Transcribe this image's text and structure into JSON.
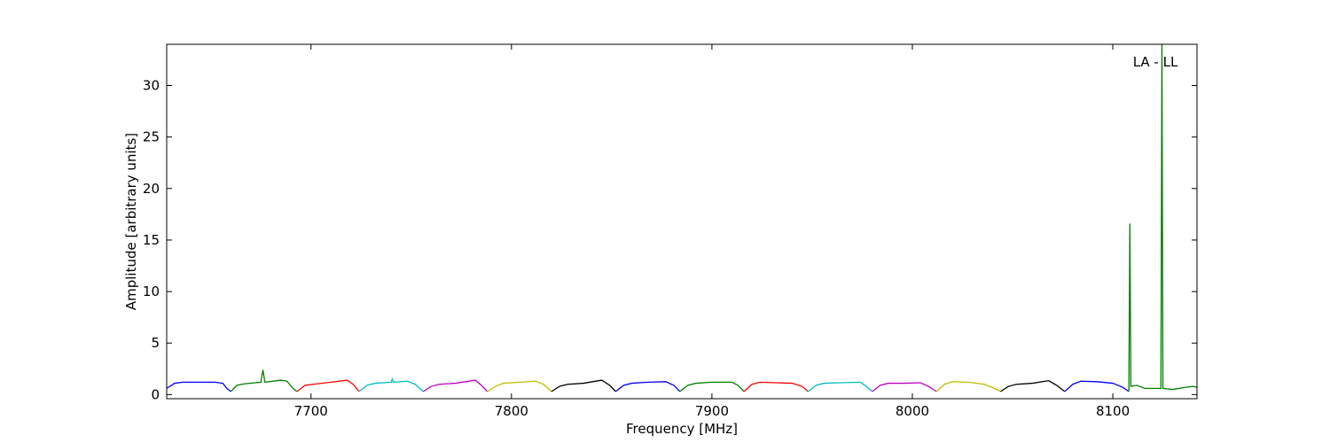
{
  "chart_data": {
    "type": "line",
    "annotation": "LA - LL",
    "xlabel": "Frequency [MHz]",
    "ylabel": "Amplitude [arbitrary units]",
    "xlim": [
      7628,
      8142
    ],
    "ylim": [
      -0.4,
      34
    ],
    "xticks": [
      7700,
      7800,
      7900,
      8000,
      8100
    ],
    "yticks": [
      0,
      5,
      10,
      15,
      20,
      25,
      30
    ],
    "series": [
      {
        "color": "#0000ff",
        "x": [
          7628,
          7632,
          7636,
          7644,
          7652,
          7656,
          7658,
          7660
        ],
        "values": [
          0.6,
          1.1,
          1.2,
          1.2,
          1.2,
          1.1,
          0.6,
          0.3
        ]
      },
      {
        "color": "#008000",
        "x": [
          7660,
          7663,
          7667,
          7675,
          7676,
          7677,
          7685,
          7688,
          7691,
          7693
        ],
        "values": [
          0.3,
          0.9,
          1.05,
          1.2,
          2.4,
          1.2,
          1.4,
          1.3,
          0.6,
          0.3
        ]
      },
      {
        "color": "#ff0000",
        "x": [
          7693,
          7697,
          7701,
          7710,
          7718,
          7721,
          7724
        ],
        "values": [
          0.3,
          0.9,
          1.0,
          1.2,
          1.4,
          1.0,
          0.3
        ]
      },
      {
        "color": "#00bfbf",
        "x": [
          7724,
          7728,
          7732,
          7740,
          7740.5,
          7741,
          7748,
          7752,
          7756
        ],
        "values": [
          0.3,
          0.9,
          1.1,
          1.2,
          1.5,
          1.2,
          1.3,
          1.0,
          0.3
        ]
      },
      {
        "color": "#bf00bf",
        "x": [
          7756,
          7760,
          7764,
          7772,
          7782,
          7785,
          7788
        ],
        "values": [
          0.3,
          0.8,
          1.0,
          1.1,
          1.4,
          0.9,
          0.3
        ]
      },
      {
        "color": "#bfbf00",
        "x": [
          7788,
          7792,
          7796,
          7804,
          7812,
          7816,
          7820
        ],
        "values": [
          0.3,
          0.8,
          1.1,
          1.2,
          1.3,
          1.0,
          0.3
        ]
      },
      {
        "color": "#000000",
        "x": [
          7820,
          7824,
          7828,
          7836,
          7845,
          7849,
          7852
        ],
        "values": [
          0.3,
          0.8,
          1.0,
          1.1,
          1.4,
          0.9,
          0.3
        ]
      },
      {
        "color": "#0000ff",
        "x": [
          7852,
          7856,
          7860,
          7868,
          7877,
          7881,
          7884
        ],
        "values": [
          0.3,
          0.9,
          1.1,
          1.2,
          1.25,
          0.9,
          0.3
        ]
      },
      {
        "color": "#008000",
        "x": [
          7884,
          7888,
          7892,
          7900,
          7910,
          7913,
          7916
        ],
        "values": [
          0.3,
          0.9,
          1.1,
          1.2,
          1.2,
          0.9,
          0.3
        ]
      },
      {
        "color": "#ff0000",
        "x": [
          7916,
          7920,
          7924,
          7932,
          7940,
          7945,
          7948
        ],
        "values": [
          0.3,
          1.0,
          1.2,
          1.15,
          1.1,
          0.8,
          0.3
        ]
      },
      {
        "color": "#00bfbf",
        "x": [
          7948,
          7952,
          7956,
          7964,
          7974,
          7977,
          7980
        ],
        "values": [
          0.3,
          0.9,
          1.1,
          1.15,
          1.2,
          0.8,
          0.3
        ]
      },
      {
        "color": "#bf00bf",
        "x": [
          7980,
          7984,
          7988,
          7996,
          8004,
          8008,
          8012
        ],
        "values": [
          0.3,
          0.9,
          1.1,
          1.1,
          1.15,
          0.8,
          0.3
        ]
      },
      {
        "color": "#bfbf00",
        "x": [
          8012,
          8016,
          8020,
          8028,
          8036,
          8041,
          8044
        ],
        "values": [
          0.3,
          1.0,
          1.25,
          1.2,
          1.0,
          0.6,
          0.3
        ]
      },
      {
        "color": "#000000",
        "x": [
          8044,
          8048,
          8052,
          8060,
          8068,
          8072,
          8076
        ],
        "values": [
          0.3,
          0.8,
          1.0,
          1.1,
          1.35,
          0.9,
          0.3
        ]
      },
      {
        "color": "#0000ff",
        "x": [
          8076,
          8080,
          8084,
          8092,
          8100,
          8105,
          8108
        ],
        "values": [
          0.3,
          1.0,
          1.3,
          1.25,
          1.1,
          0.7,
          0.3
        ]
      },
      {
        "color": "#008000",
        "x": [
          8108,
          8108.5,
          8109,
          8112,
          8116,
          8120,
          8124,
          8124.5,
          8125,
          8130,
          8136,
          8140,
          8142
        ],
        "values": [
          0.3,
          16.6,
          0.8,
          0.9,
          0.6,
          0.6,
          0.6,
          34,
          0.6,
          0.5,
          0.7,
          0.8,
          0.7
        ]
      }
    ]
  }
}
